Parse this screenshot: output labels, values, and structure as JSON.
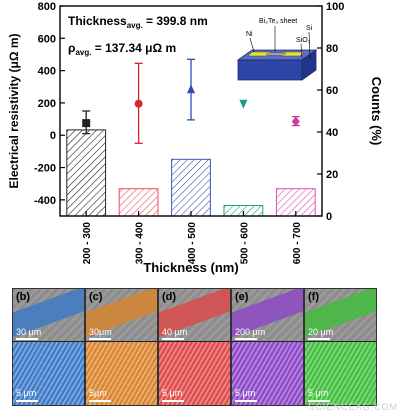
{
  "chart_data": {
    "type": "bar",
    "xlabel": "Thickness (nm)",
    "ylabel_left": "Electrical resistivity (μΩ m)",
    "ylabel_right": "Counts (%)",
    "categories": [
      "200 - 300",
      "300 - 400",
      "400 - 500",
      "500 - 600",
      "600 - 700"
    ],
    "left_axis": {
      "ylim": [
        -500,
        800
      ],
      "ticks": [
        -400,
        -200,
        0,
        200,
        400,
        600,
        800
      ]
    },
    "right_axis": {
      "ylim": [
        0,
        100
      ],
      "ticks": [
        0,
        20,
        40,
        60,
        80,
        100
      ]
    },
    "series": [
      {
        "kind": "bar",
        "axis": "right",
        "values": [
          41,
          13,
          27,
          5,
          13
        ],
        "colors": [
          "#222222",
          "#e8505b",
          "#3f56b0",
          "#1aa38a",
          "#d94fb0"
        ]
      },
      {
        "kind": "point",
        "axis": "left",
        "values": [
          75,
          195,
          285,
          195,
          85
        ],
        "err_low": [
          10,
          -50,
          95,
          null,
          60
        ],
        "err_high": [
          150,
          445,
          470,
          null,
          115
        ],
        "markers": [
          "square",
          "circle",
          "triangle-up",
          "triangle-down",
          "diamond"
        ],
        "colors": [
          "#222222",
          "#d9232d",
          "#2f4cb8",
          "#1a9a8a",
          "#cc3aa2"
        ]
      }
    ],
    "annotations": {
      "thickness_label": "Thickness",
      "thickness_sub": "avg.",
      "thickness_value": "= 399.8 nm",
      "rho_label": "ρ",
      "rho_sub": "avg.",
      "rho_value": "= 137.34 μΩ m"
    },
    "inset_labels": {
      "sheet": "Bi₂Te₃ sheet",
      "ni": "Ni",
      "si": "Si",
      "sio2": "SiO₂"
    }
  },
  "panels": [
    {
      "label": "(b)",
      "scale_top": "30 μm",
      "scale_bottom": "5 μm",
      "tint": "#3a78c8"
    },
    {
      "label": "(c)",
      "scale_top": "30μm",
      "scale_bottom": "5μm",
      "tint": "#d9832a"
    },
    {
      "label": "(d)",
      "scale_top": "40 μm",
      "scale_bottom": "5 μm",
      "tint": "#e04848"
    },
    {
      "label": "(e)",
      "scale_top": "200 μm",
      "scale_bottom": "5 μm",
      "tint": "#8c45c9"
    },
    {
      "label": "(f)",
      "scale_top": "20 μm",
      "scale_bottom": "5 μm",
      "tint": "#3fbf3a"
    }
  ],
  "watermark": "SCIENCEAG.COM"
}
